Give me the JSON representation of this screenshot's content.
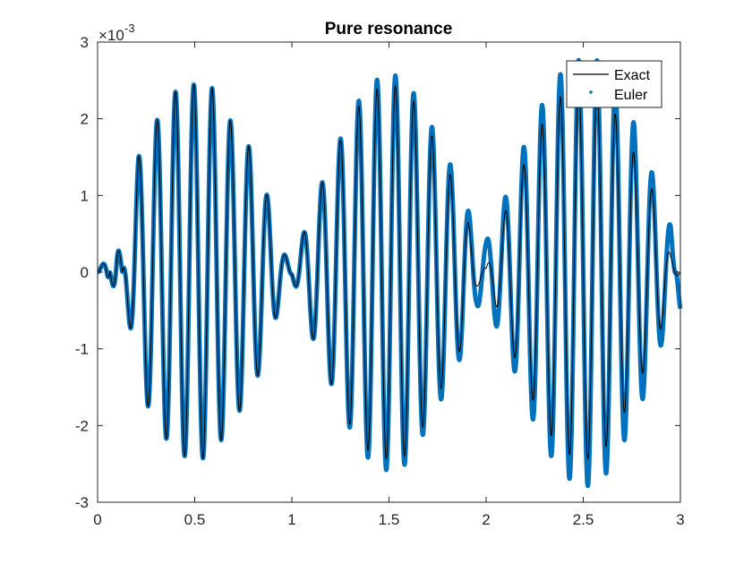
{
  "chart_data": {
    "type": "line",
    "title": "Pure resonance",
    "xlabel": "",
    "ylabel": "",
    "xlim": [
      0,
      3
    ],
    "ylim": [
      -3,
      3
    ],
    "y_scale_factor": "×10",
    "y_scale_exponent": "-3",
    "x_ticks": [
      0,
      0.5,
      1,
      1.5,
      2,
      2.5,
      3
    ],
    "x_tick_labels": [
      "0",
      "0.5",
      "1",
      "1.5",
      "2",
      "2.5",
      "3"
    ],
    "y_ticks": [
      -3,
      -2,
      -1,
      0,
      1,
      2,
      3
    ],
    "y_tick_labels": [
      "-3",
      "-2",
      "-1",
      "0",
      "1",
      "2",
      "3"
    ],
    "grid": false,
    "legend_position": "top-right",
    "series": [
      {
        "name": "Exact",
        "style": "line",
        "color": "#000000",
        "x": [
          0,
          0.05,
          0.1,
          0.21,
          0.31,
          0.4,
          0.5,
          0.59,
          0.69,
          0.79,
          0.88,
          0.95,
          1.0,
          1.12,
          1.21,
          1.31,
          1.4,
          1.5,
          1.59,
          1.69,
          1.78,
          1.88,
          1.95,
          2.0,
          2.12,
          2.21,
          2.31,
          2.4,
          2.5,
          2.59,
          2.69,
          2.78,
          2.88,
          2.95,
          3.0
        ],
        "y": [
          0,
          0.2,
          -0.5,
          1.5,
          2.0,
          2.35,
          2.45,
          2.4,
          1.95,
          1.6,
          0.95,
          0.3,
          0.05,
          0.95,
          1.5,
          2.05,
          2.35,
          2.45,
          2.4,
          1.95,
          1.45,
          0.95,
          0.2,
          0.05,
          0.95,
          1.5,
          2.05,
          2.35,
          2.45,
          2.4,
          1.95,
          1.45,
          0.95,
          0.2,
          0.0
        ]
      },
      {
        "name": "Euler",
        "style": "dots",
        "color": "#0072BD",
        "x": [
          0,
          0.05,
          0.1,
          0.21,
          0.31,
          0.4,
          0.5,
          0.59,
          0.69,
          0.79,
          0.88,
          0.95,
          1.0,
          1.12,
          1.21,
          1.31,
          1.4,
          1.5,
          1.59,
          1.69,
          1.78,
          1.88,
          1.95,
          2.0,
          2.12,
          2.21,
          2.31,
          2.4,
          2.5,
          2.59,
          2.69,
          2.78,
          2.88,
          2.95,
          3.0
        ],
        "y": [
          0,
          0.2,
          -0.5,
          1.5,
          2.0,
          2.35,
          2.45,
          2.4,
          1.95,
          1.6,
          0.95,
          0.3,
          0.05,
          0.95,
          1.5,
          2.1,
          2.45,
          2.6,
          2.5,
          2.05,
          1.6,
          1.05,
          0.45,
          0.4,
          1.1,
          1.75,
          2.3,
          2.65,
          2.8,
          2.75,
          2.3,
          1.85,
          1.1,
          0.6,
          -0.5
        ]
      }
    ]
  }
}
